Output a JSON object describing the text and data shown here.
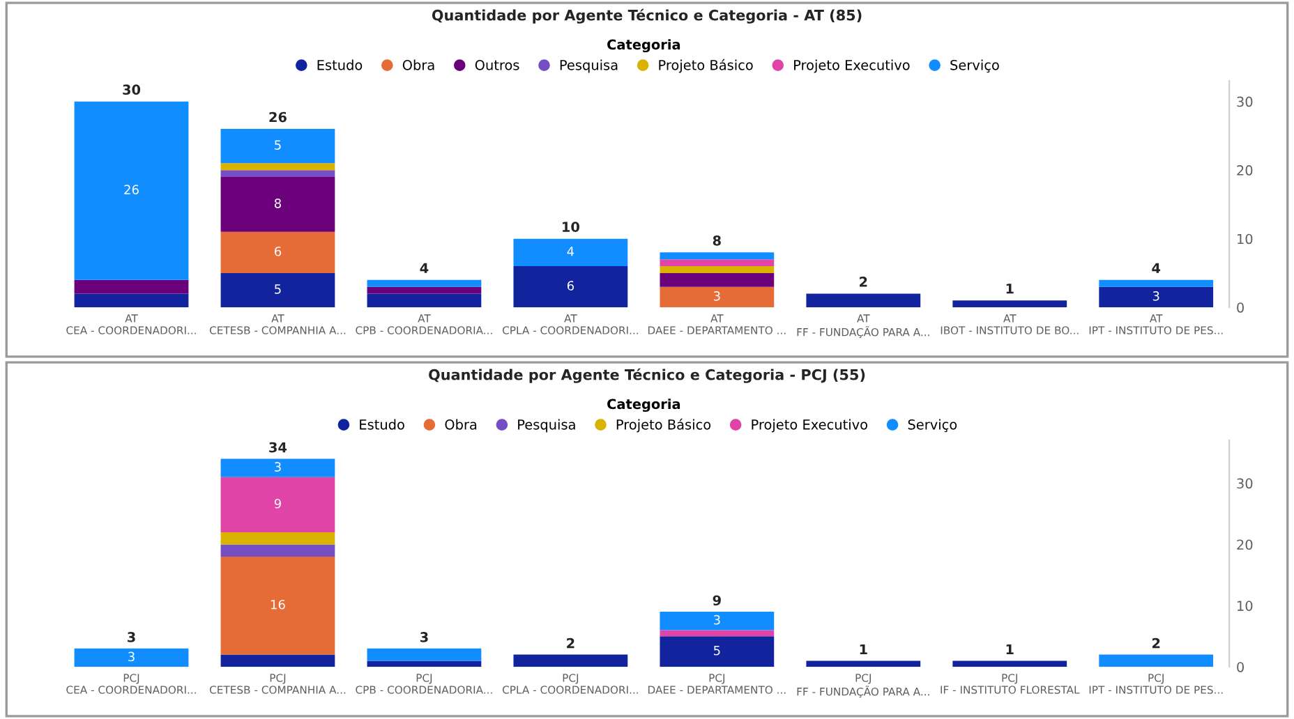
{
  "chart_data": [
    {
      "type": "bar",
      "stacked": true,
      "title": "Quantidade por Agente Técnico e Categoria - AT (85)",
      "legend_title": "Categoria",
      "legend": "top",
      "categories": [
        "AT\nCEA - COORDENADORI...",
        "AT\nCETESB - COMPANHIA A...",
        "AT\nCPB - COORDENADORIA...",
        "AT\nCPLA - COORDENADORI...",
        "AT\nDAEE - DEPARTAMENTO ...",
        "AT\nFF - FUNDAÇÃO PARA A...",
        "AT\nIBOT - INSTITUTO DE BO...",
        "AT\nIPT - INSTITUTO DE PES..."
      ],
      "ylim": [
        0,
        33
      ],
      "yticks": [
        0,
        10,
        20,
        30
      ],
      "grid": false,
      "series": [
        {
          "name": "Estudo",
          "color": "#12239e",
          "values": [
            2,
            5,
            2,
            6,
            0,
            2,
            1,
            3
          ],
          "value_labels": [
            null,
            "5",
            null,
            "6",
            null,
            null,
            null,
            "3"
          ]
        },
        {
          "name": "Obra",
          "color": "#e66c37",
          "values": [
            0,
            6,
            0,
            0,
            3,
            0,
            0,
            0
          ],
          "value_labels": [
            null,
            "6",
            null,
            null,
            "3",
            null,
            null,
            null
          ]
        },
        {
          "name": "Outros",
          "color": "#6b007b",
          "values": [
            2,
            8,
            1,
            0,
            2,
            0,
            0,
            0
          ],
          "value_labels": [
            null,
            "8",
            null,
            null,
            null,
            null,
            null,
            null
          ]
        },
        {
          "name": "Pesquisa",
          "color": "#744ec2",
          "values": [
            0,
            1,
            0,
            0,
            0,
            0,
            0,
            0
          ]
        },
        {
          "name": "Projeto Básico",
          "color": "#d9b300",
          "values": [
            0,
            1,
            0,
            0,
            1,
            0,
            0,
            0
          ]
        },
        {
          "name": "Projeto Executivo",
          "color": "#e044a7",
          "values": [
            0,
            0,
            0,
            0,
            1,
            0,
            0,
            0
          ]
        },
        {
          "name": "Serviço",
          "color": "#118dff",
          "values": [
            26,
            5,
            1,
            4,
            1,
            0,
            0,
            1
          ],
          "value_labels": [
            "26",
            "5",
            null,
            "4",
            null,
            null,
            null,
            null
          ]
        }
      ],
      "totals": [
        "30",
        "26",
        "4",
        "10",
        "8",
        "2",
        "1",
        "4"
      ]
    },
    {
      "type": "bar",
      "stacked": true,
      "title": "Quantidade por Agente Técnico e Categoria - PCJ (55)",
      "legend_title": "Categoria",
      "legend": "top",
      "categories": [
        "PCJ\nCEA - COORDENADORI...",
        "PCJ\nCETESB - COMPANHIA A...",
        "PCJ\nCPB - COORDENADORIA...",
        "PCJ\nCPLA - COORDENADORI...",
        "PCJ\nDAEE - DEPARTAMENTO ...",
        "PCJ\nFF - FUNDAÇÃO PARA A...",
        "PCJ\nIF - INSTITUTO FLORESTAL",
        "PCJ\nIPT - INSTITUTO DE PES..."
      ],
      "ylim": [
        0,
        37
      ],
      "yticks": [
        0,
        10,
        20,
        30
      ],
      "grid": false,
      "series": [
        {
          "name": "Estudo",
          "color": "#12239e",
          "values": [
            0,
            2,
            1,
            2,
            5,
            1,
            1,
            0
          ],
          "value_labels": [
            null,
            null,
            null,
            null,
            "5",
            null,
            null,
            null
          ]
        },
        {
          "name": "Obra",
          "color": "#e66c37",
          "values": [
            0,
            16,
            0,
            0,
            0,
            0,
            0,
            0
          ],
          "value_labels": [
            null,
            "16",
            null,
            null,
            null,
            null,
            null,
            null
          ]
        },
        {
          "name": "Pesquisa",
          "color": "#744ec2",
          "values": [
            0,
            2,
            0,
            0,
            0,
            0,
            0,
            0
          ]
        },
        {
          "name": "Projeto Básico",
          "color": "#d9b300",
          "values": [
            0,
            2,
            0,
            0,
            0,
            0,
            0,
            0
          ]
        },
        {
          "name": "Projeto Executivo",
          "color": "#e044a7",
          "values": [
            0,
            9,
            0,
            0,
            1,
            0,
            0,
            0
          ],
          "value_labels": [
            null,
            "9",
            null,
            null,
            null,
            null,
            null,
            null
          ]
        },
        {
          "name": "Serviço",
          "color": "#118dff",
          "values": [
            3,
            3,
            2,
            0,
            3,
            0,
            0,
            2
          ],
          "value_labels": [
            "3",
            "3",
            null,
            null,
            "3",
            null,
            null,
            null
          ]
        }
      ],
      "totals": [
        "3",
        "34",
        "3",
        "2",
        "9",
        "1",
        "1",
        "2"
      ]
    }
  ]
}
